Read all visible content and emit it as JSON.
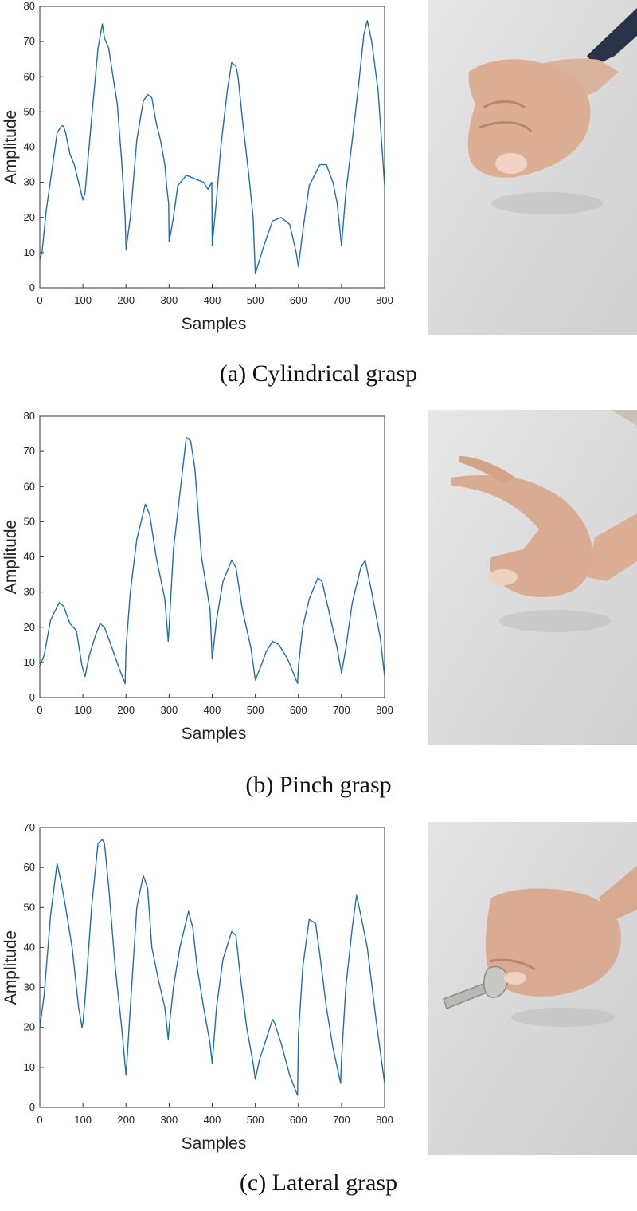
{
  "chart_data": [
    {
      "type": "line",
      "panel": "a",
      "caption": "(a) Cylindrical grasp",
      "xlabel": "Samples",
      "ylabel": "Amplitude",
      "xlim": [
        0,
        800
      ],
      "ylim": [
        0,
        80
      ],
      "xticks": [
        0,
        100,
        200,
        300,
        400,
        500,
        600,
        700,
        800
      ],
      "yticks": [
        0,
        10,
        20,
        30,
        40,
        50,
        60,
        70,
        80
      ],
      "grid": false,
      "line_color": "#1f6faa",
      "x": [
        0,
        5,
        15,
        30,
        40,
        50,
        55,
        60,
        70,
        80,
        90,
        100,
        105,
        120,
        135,
        145,
        150,
        160,
        170,
        180,
        190,
        198,
        200,
        210,
        225,
        240,
        250,
        260,
        270,
        280,
        290,
        295,
        299,
        300,
        310,
        320,
        340,
        360,
        380,
        390,
        399,
        400,
        410,
        420,
        435,
        445,
        455,
        460,
        470,
        485,
        495,
        500,
        510,
        520,
        540,
        560,
        580,
        595,
        600,
        610,
        625,
        650,
        665,
        680,
        690,
        700,
        710,
        725,
        740,
        752,
        760,
        770,
        785,
        800
      ],
      "y": [
        8,
        10,
        22,
        35,
        44,
        46,
        46,
        44,
        38,
        35,
        30,
        25,
        27,
        48,
        68,
        75,
        71,
        68,
        60,
        52,
        36,
        20,
        11,
        20,
        42,
        53,
        55,
        54,
        47,
        42,
        35,
        28,
        24,
        13,
        20,
        29,
        32,
        31,
        30,
        28,
        30,
        12,
        25,
        40,
        56,
        64,
        63,
        60,
        48,
        32,
        20,
        4,
        8,
        12,
        19,
        20,
        18,
        10,
        6,
        16,
        29,
        35,
        35,
        30,
        24,
        12,
        27,
        42,
        58,
        72,
        76,
        70,
        56,
        29
      ]
    },
    {
      "type": "line",
      "panel": "b",
      "caption": "(b) Pinch grasp",
      "xlabel": "Samples",
      "ylabel": "Amplitude",
      "xlim": [
        0,
        800
      ],
      "ylim": [
        0,
        80
      ],
      "xticks": [
        0,
        100,
        200,
        300,
        400,
        500,
        600,
        700,
        800
      ],
      "yticks": [
        0,
        10,
        20,
        30,
        40,
        50,
        60,
        70,
        80
      ],
      "grid": false,
      "line_color": "#1f6faa",
      "x": [
        0,
        10,
        25,
        45,
        55,
        70,
        85,
        98,
        105,
        115,
        130,
        140,
        150,
        165,
        185,
        198,
        200,
        210,
        225,
        245,
        255,
        270,
        290,
        298,
        300,
        310,
        325,
        340,
        350,
        360,
        375,
        395,
        400,
        410,
        425,
        445,
        455,
        470,
        490,
        500,
        510,
        525,
        540,
        555,
        575,
        598,
        600,
        610,
        625,
        645,
        655,
        670,
        690,
        700,
        710,
        725,
        745,
        755,
        770,
        790,
        800
      ],
      "y": [
        9,
        12,
        22,
        27,
        26,
        21,
        19,
        9,
        6,
        12,
        18,
        21,
        20,
        15,
        8,
        4,
        14,
        30,
        45,
        55,
        52,
        40,
        28,
        16,
        20,
        42,
        58,
        74,
        73,
        65,
        40,
        25,
        11,
        22,
        33,
        39,
        37,
        25,
        14,
        5,
        8,
        13,
        16,
        15,
        11,
        4,
        9,
        20,
        28,
        34,
        33,
        25,
        14,
        7,
        14,
        27,
        37,
        39,
        30,
        17,
        6
      ]
    },
    {
      "type": "line",
      "panel": "c",
      "caption": "(c) Lateral grasp",
      "xlabel": "Samples",
      "ylabel": "Amplitude",
      "xlim": [
        0,
        800
      ],
      "ylim": [
        0,
        70
      ],
      "xticks": [
        0,
        100,
        200,
        300,
        400,
        500,
        600,
        700,
        800
      ],
      "yticks": [
        0,
        10,
        20,
        30,
        40,
        50,
        60,
        70
      ],
      "grid": false,
      "line_color": "#1f6faa",
      "x": [
        0,
        10,
        25,
        40,
        50,
        60,
        75,
        90,
        98,
        100,
        105,
        120,
        135,
        145,
        150,
        160,
        175,
        190,
        200,
        210,
        225,
        240,
        250,
        260,
        275,
        290,
        298,
        300,
        310,
        325,
        345,
        355,
        365,
        380,
        395,
        400,
        410,
        425,
        445,
        455,
        465,
        480,
        495,
        500,
        510,
        525,
        540,
        545,
        560,
        580,
        598,
        600,
        610,
        625,
        640,
        650,
        665,
        680,
        698,
        700,
        710,
        725,
        735,
        745,
        760,
        780,
        800
      ],
      "y": [
        20,
        28,
        48,
        61,
        56,
        50,
        40,
        25,
        20,
        21,
        27,
        50,
        66,
        67,
        66,
        55,
        35,
        20,
        8,
        25,
        50,
        58,
        55,
        40,
        32,
        25,
        17,
        20,
        30,
        40,
        49,
        45,
        35,
        25,
        16,
        11,
        25,
        37,
        44,
        43,
        33,
        20,
        11,
        7,
        12,
        17,
        22,
        21,
        16,
        8,
        3,
        18,
        35,
        47,
        46,
        38,
        25,
        15,
        6,
        12,
        30,
        45,
        53,
        48,
        40,
        22,
        6
      ]
    }
  ]
}
